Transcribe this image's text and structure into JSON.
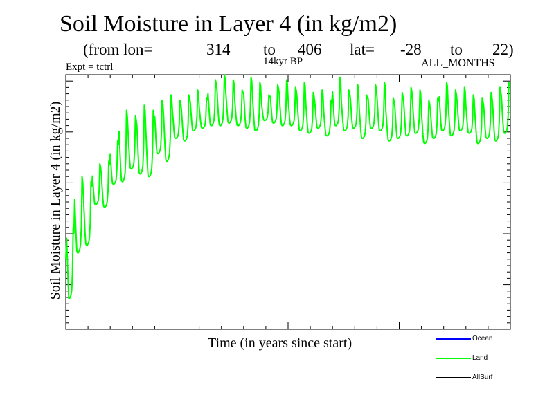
{
  "chart_data": {
    "type": "line",
    "title": "Soil Moisture in Layer 4 (in kg/m2)",
    "subtitle": {
      "from_lon_label": "(from lon=",
      "lon_start": "314",
      "to_label_1": "to",
      "lon_end": "406",
      "lat_label": "lat=",
      "lat_start": "-28",
      "to_label_2": "to",
      "lat_end": "22)"
    },
    "experiment": "Expt = tctrl",
    "period": "14kyr BP",
    "months": "ALL_MONTHS",
    "xlabel": "Time (in years since start)",
    "ylabel": "Soil Moisture in Layer 4 (in kg/m2)",
    "xlim": [
      0,
      50
    ],
    "ylim": [
      0,
      100
    ],
    "x_major_ticks": [
      0,
      12.5,
      25,
      37.5,
      50
    ],
    "y_major_ticks": [
      17.5,
      37.5,
      57.5,
      77.5,
      97.5
    ],
    "note": "Axis tick values are not printed on the original figure; values are in relative units estimated from the plot (0 = axis bottom, 100 = axis top).",
    "series": [
      {
        "name": "Land",
        "color": "#00ff00",
        "years": [
          0.5,
          1.5,
          2.5,
          3.5,
          4.5,
          5.5,
          6.5,
          7.5,
          8.5,
          9.5,
          10.5,
          11.5,
          12.5,
          13.5,
          14.5,
          15.5,
          16.5,
          17.5,
          18.5,
          19.5,
          20.5,
          21.5,
          22.5,
          23.5,
          24.5,
          25.5,
          26.5,
          27.5,
          28.5,
          29.5,
          30.5,
          31.5,
          32.5,
          33.5,
          34.5,
          35.5,
          36.5,
          37.5,
          38.5,
          39.5,
          40.5,
          41.5,
          42.5,
          43.5,
          44.5,
          45.5,
          46.5,
          47.5,
          48.5,
          49.5
        ],
        "annual_max": [
          40,
          60,
          58,
          65,
          66,
          74,
          86,
          84,
          88,
          86,
          90,
          92,
          90,
          92,
          94,
          91,
          98,
          100,
          98,
          94,
          99,
          97,
          92,
          96,
          98,
          95,
          97,
          93,
          94,
          90,
          99,
          94,
          96,
          92,
          96,
          97,
          91,
          93,
          95,
          94,
          90,
          91,
          97,
          94,
          95,
          92,
          91,
          93,
          95,
          97
        ],
        "annual_min": [
          12,
          30,
          33,
          49,
          48,
          57,
          58,
          63,
          61,
          60,
          69,
          66,
          75,
          74,
          78,
          79,
          80,
          80,
          81,
          80,
          79,
          78,
          82,
          81,
          80,
          80,
          78,
          77,
          79,
          76,
          80,
          78,
          79,
          75,
          79,
          78,
          74,
          75,
          76,
          77,
          73,
          75,
          78,
          76,
          78,
          77,
          73,
          75,
          74,
          77
        ]
      },
      {
        "name": "Ocean",
        "color": "#0000ff",
        "values": []
      },
      {
        "name": "AllSurf",
        "color": "#000000",
        "values": []
      }
    ],
    "legend_position": "bottom-right"
  }
}
